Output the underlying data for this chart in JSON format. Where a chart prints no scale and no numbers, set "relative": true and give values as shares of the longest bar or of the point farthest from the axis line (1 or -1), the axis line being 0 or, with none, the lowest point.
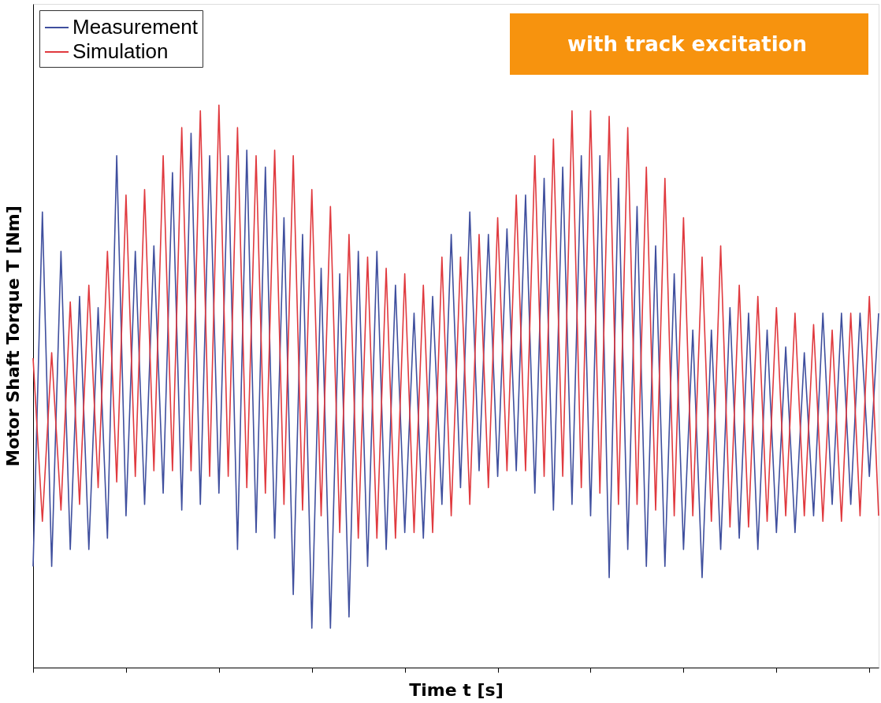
{
  "chart_data": {
    "type": "line",
    "relative": true,
    "xlabel": "Time t [s]",
    "ylabel": "Motor Shaft Torque T [Nm]",
    "annotations": [
      "with track excitation"
    ],
    "legend": "top left",
    "grid": false,
    "tick_labels": false,
    "marker": "none",
    "line_style": "solid",
    "categories": [
      null,
      null,
      null,
      null,
      null,
      null,
      null,
      null,
      null,
      null,
      null,
      null,
      null,
      null,
      null,
      null,
      null,
      null,
      null,
      null,
      null,
      null,
      null,
      null,
      null,
      null,
      null,
      null,
      null,
      null,
      null,
      null,
      null,
      null,
      null,
      null,
      null,
      null,
      null,
      null,
      null,
      null,
      null,
      null,
      null,
      null,
      null,
      null,
      null,
      null,
      null,
      null,
      null,
      null,
      null,
      null,
      null,
      null,
      null,
      null,
      null,
      null,
      null,
      null,
      null,
      null,
      null,
      null,
      null,
      null,
      null,
      null,
      null,
      null,
      null,
      null,
      null,
      null,
      null,
      null,
      null,
      null,
      null,
      null,
      null,
      null,
      null,
      null,
      null,
      null,
      null,
      null
    ],
    "series": [
      {
        "name": "Measurement",
        "color": "#3f4f9e",
        "values": [
          0.18,
          0.81,
          0.18,
          0.74,
          0.21,
          0.66,
          0.21,
          0.64,
          0.23,
          0.91,
          0.27,
          0.74,
          0.29,
          0.75,
          0.31,
          0.88,
          0.28,
          0.95,
          0.29,
          0.91,
          0.31,
          0.91,
          0.21,
          0.92,
          0.24,
          0.89,
          0.23,
          0.8,
          0.13,
          0.77,
          0.07,
          0.71,
          0.07,
          0.7,
          0.09,
          0.74,
          0.18,
          0.74,
          0.21,
          0.68,
          0.24,
          0.63,
          0.23,
          0.66,
          0.29,
          0.77,
          0.32,
          0.81,
          0.35,
          0.77,
          0.34,
          0.78,
          0.35,
          0.84,
          0.31,
          0.87,
          0.28,
          0.89,
          0.29,
          0.91,
          0.27,
          0.91,
          0.16,
          0.87,
          0.21,
          0.82,
          0.18,
          0.75,
          0.18,
          0.7,
          0.21,
          0.6,
          0.16,
          0.6,
          0.21,
          0.64,
          0.23,
          0.63,
          0.21,
          0.6,
          0.24,
          0.57,
          0.24,
          0.56,
          0.27,
          0.63,
          0.29,
          0.63,
          0.29,
          0.63,
          0.34,
          0.63
        ]
      },
      {
        "name": "Simulation",
        "color": "#e0393e",
        "values": [
          0.55,
          0.26,
          0.56,
          0.28,
          0.65,
          0.29,
          0.68,
          0.32,
          0.74,
          0.33,
          0.84,
          0.34,
          0.85,
          0.35,
          0.91,
          0.35,
          0.96,
          0.35,
          0.99,
          0.34,
          1.0,
          0.34,
          0.96,
          0.32,
          0.91,
          0.31,
          0.92,
          0.29,
          0.91,
          0.28,
          0.85,
          0.27,
          0.82,
          0.24,
          0.77,
          0.23,
          0.73,
          0.23,
          0.71,
          0.23,
          0.7,
          0.24,
          0.68,
          0.24,
          0.73,
          0.27,
          0.73,
          0.29,
          0.77,
          0.32,
          0.8,
          0.35,
          0.84,
          0.35,
          0.91,
          0.34,
          0.94,
          0.34,
          0.99,
          0.32,
          0.99,
          0.31,
          0.98,
          0.29,
          0.96,
          0.29,
          0.89,
          0.28,
          0.87,
          0.27,
          0.8,
          0.27,
          0.73,
          0.26,
          0.75,
          0.25,
          0.68,
          0.25,
          0.66,
          0.26,
          0.64,
          0.27,
          0.63,
          0.27,
          0.61,
          0.26,
          0.6,
          0.26,
          0.63,
          0.27,
          0.66,
          0.27
        ]
      }
    ]
  }
}
